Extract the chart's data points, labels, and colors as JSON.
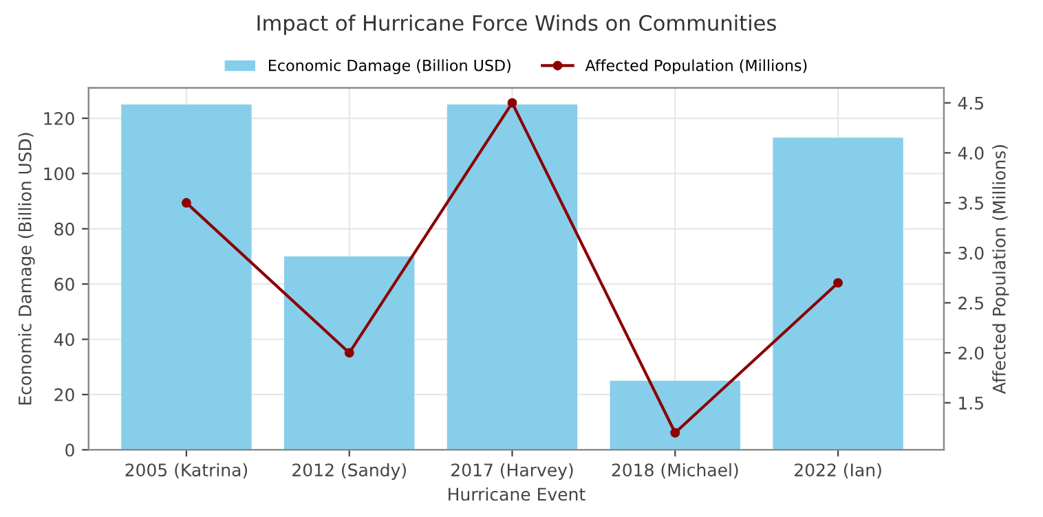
{
  "chart_data": {
    "type": "bar",
    "title": "Impact of Hurricane Force Winds on Communities",
    "xlabel": "Hurricane Event",
    "ylabel": "Economic Damage (Billion USD)",
    "y2label": "Affected Population (Millions)",
    "categories": [
      "2005 (Katrina)",
      "2012 (Sandy)",
      "2017 (Harvey)",
      "2018 (Michael)",
      "2022 (Ian)"
    ],
    "series": [
      {
        "name": "Economic Damage (Billion USD)",
        "color": "#87ceeb",
        "values": [
          125,
          70,
          125,
          25,
          113
        ]
      },
      {
        "name": "Affected Population (Millions)",
        "type": "line",
        "axis": "y2",
        "color": "#8b0000",
        "marker": "circle",
        "values": [
          3.5,
          2.0,
          4.5,
          1.2,
          2.7
        ]
      }
    ],
    "ylim": [
      0,
      131
    ],
    "yticks": [
      0,
      20,
      40,
      60,
      80,
      100,
      120
    ],
    "y2lim": [
      1.03,
      4.65
    ],
    "y2ticks": [
      1.5,
      {
        "value": 2,
        "label": "2.0"
      },
      2.5,
      {
        "value": 3,
        "label": "3.0"
      },
      3.5,
      {
        "value": 4,
        "label": "4.0"
      },
      4.5
    ],
    "grid": true,
    "legend": "top"
  }
}
